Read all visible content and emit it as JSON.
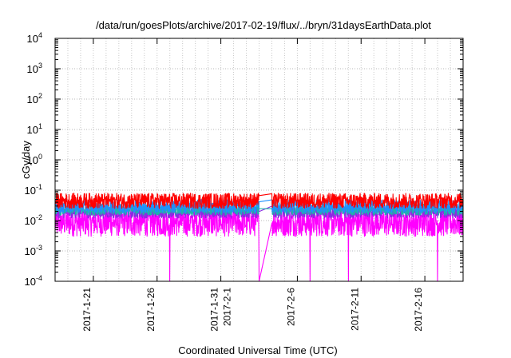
{
  "chart_data": {
    "type": "line",
    "title": "/data/run/goesPlots/archive/2017-02-19/flux/../bryn/31daysEarthData.plot",
    "xlabel": "Coordinated Universal Time (UTC)",
    "ylabel": "cGy/day",
    "yscale": "log",
    "ylim": [
      0.0001,
      10000
    ],
    "xlim": [
      "2017-01-18",
      "2017-02-19"
    ],
    "y_ticks": [
      {
        "value": 0.0001,
        "base": "10",
        "exp": "-4"
      },
      {
        "value": 0.001,
        "base": "10",
        "exp": "-3"
      },
      {
        "value": 0.01,
        "base": "10",
        "exp": "-2"
      },
      {
        "value": 0.1,
        "base": "10",
        "exp": "-1"
      },
      {
        "value": 1,
        "base": "10",
        "exp": "0"
      },
      {
        "value": 10,
        "base": "10",
        "exp": "1"
      },
      {
        "value": 100,
        "base": "10",
        "exp": "2"
      },
      {
        "value": 1000,
        "base": "10",
        "exp": "3"
      },
      {
        "value": 10000,
        "base": "10",
        "exp": "4"
      }
    ],
    "x_ticks": [
      {
        "date": "2017-01-21",
        "labels": [
          "2017-1-21"
        ]
      },
      {
        "date": "2017-01-26",
        "labels": [
          "2017-1-26"
        ]
      },
      {
        "date": "2017-01-31",
        "labels": [
          "2017-1-31",
          "2017-2-1"
        ]
      },
      {
        "date": "2017-02-06",
        "labels": [
          "2017-2-6"
        ]
      },
      {
        "date": "2017-02-11",
        "labels": [
          "2017-2-11"
        ]
      },
      {
        "date": "2017-02-16",
        "labels": [
          "2017-2-16"
        ]
      }
    ],
    "grid": true,
    "data_gap": [
      "2017-02-03",
      "2017-02-04"
    ],
    "series": [
      {
        "color": "#ff0000",
        "typical_range": [
          0.025,
          0.08
        ]
      },
      {
        "color": "#1e90ff",
        "typical_range": [
          0.018,
          0.05
        ]
      },
      {
        "color": "#20b2aa",
        "typical_range": [
          0.015,
          0.035
        ]
      },
      {
        "color": "#8a2be2",
        "typical_range": [
          0.012,
          0.03
        ]
      },
      {
        "color": "#ff00ff",
        "typical_range": [
          0.003,
          0.025
        ],
        "dropouts": [
          "2017-01-27",
          "2017-02-03",
          "2017-02-07",
          "2017-02-10",
          "2017-02-17"
        ]
      }
    ]
  }
}
